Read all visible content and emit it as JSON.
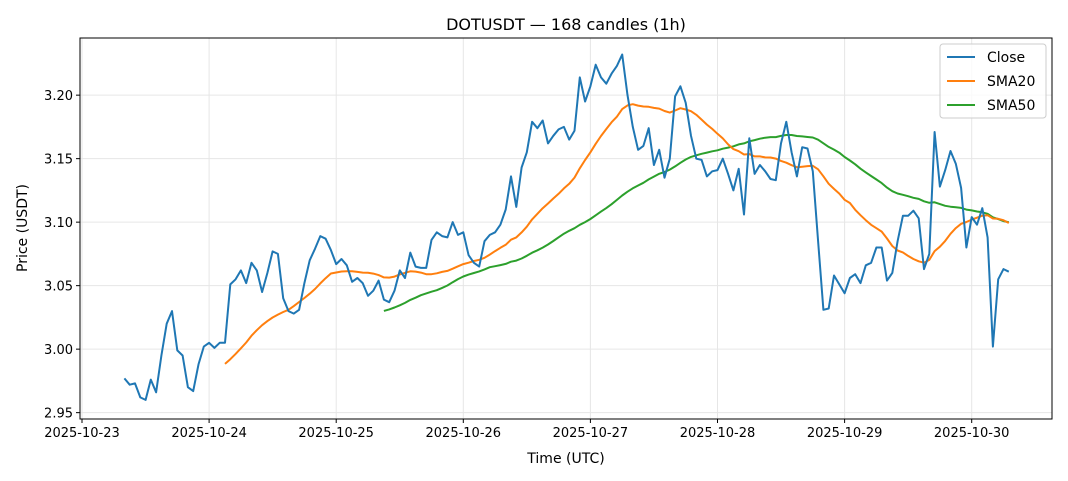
{
  "chart_data": {
    "type": "line",
    "title": "DOTUSDT — 168 candles (1h)",
    "xlabel": "Time (UTC)",
    "ylabel": "Price (USDT)",
    "start": "2025-10-23 08:00",
    "interval_hours": 1,
    "xticks": [
      "2025-10-23",
      "2025-10-24",
      "2025-10-25",
      "2025-10-26",
      "2025-10-27",
      "2025-10-28",
      "2025-10-29",
      "2025-10-30"
    ],
    "yticks": [
      "2.95",
      "3.00",
      "3.05",
      "3.10",
      "3.15",
      "3.20"
    ],
    "ylim": [
      2.945,
      3.245
    ],
    "grid": true,
    "legend_position": "top-right",
    "series": [
      {
        "name": "Close",
        "color": "#1f77b4",
        "values": [
          2.977,
          2.972,
          2.973,
          2.962,
          2.96,
          2.976,
          2.966,
          2.995,
          3.02,
          3.03,
          2.999,
          2.995,
          2.97,
          2.967,
          2.988,
          3.002,
          3.005,
          3.001,
          3.005,
          3.005,
          3.051,
          3.055,
          3.062,
          3.052,
          3.068,
          3.062,
          3.045,
          3.06,
          3.077,
          3.075,
          3.04,
          3.03,
          3.028,
          3.031,
          3.052,
          3.07,
          3.079,
          3.089,
          3.087,
          3.078,
          3.067,
          3.071,
          3.066,
          3.053,
          3.056,
          3.052,
          3.042,
          3.046,
          3.054,
          3.039,
          3.037,
          3.046,
          3.062,
          3.056,
          3.076,
          3.065,
          3.064,
          3.064,
          3.086,
          3.092,
          3.089,
          3.088,
          3.1,
          3.09,
          3.092,
          3.074,
          3.068,
          3.065,
          3.085,
          3.09,
          3.092,
          3.098,
          3.11,
          3.136,
          3.112,
          3.143,
          3.155,
          3.179,
          3.174,
          3.18,
          3.162,
          3.168,
          3.173,
          3.175,
          3.165,
          3.172,
          3.214,
          3.195,
          3.207,
          3.224,
          3.214,
          3.209,
          3.217,
          3.223,
          3.232,
          3.2,
          3.175,
          3.157,
          3.16,
          3.174,
          3.145,
          3.157,
          3.135,
          3.15,
          3.199,
          3.207,
          3.194,
          3.168,
          3.15,
          3.149,
          3.136,
          3.14,
          3.141,
          3.15,
          3.138,
          3.125,
          3.142,
          3.106,
          3.166,
          3.138,
          3.145,
          3.14,
          3.134,
          3.133,
          3.162,
          3.179,
          3.155,
          3.136,
          3.159,
          3.158,
          3.14,
          3.085,
          3.031,
          3.032,
          3.058,
          3.051,
          3.044,
          3.056,
          3.059,
          3.052,
          3.066,
          3.068,
          3.08,
          3.08,
          3.054,
          3.06,
          3.085,
          3.105,
          3.105,
          3.109,
          3.103,
          3.063,
          3.075,
          3.171,
          3.128,
          3.141,
          3.156,
          3.146,
          3.127,
          3.08,
          3.104,
          3.098,
          3.111,
          3.088,
          3.002,
          3.055,
          3.063,
          3.061
        ]
      },
      {
        "name": "SMA20",
        "color": "#ff7f0e",
        "window": 20
      },
      {
        "name": "SMA50",
        "color": "#2ca02c",
        "window": 50
      }
    ]
  }
}
